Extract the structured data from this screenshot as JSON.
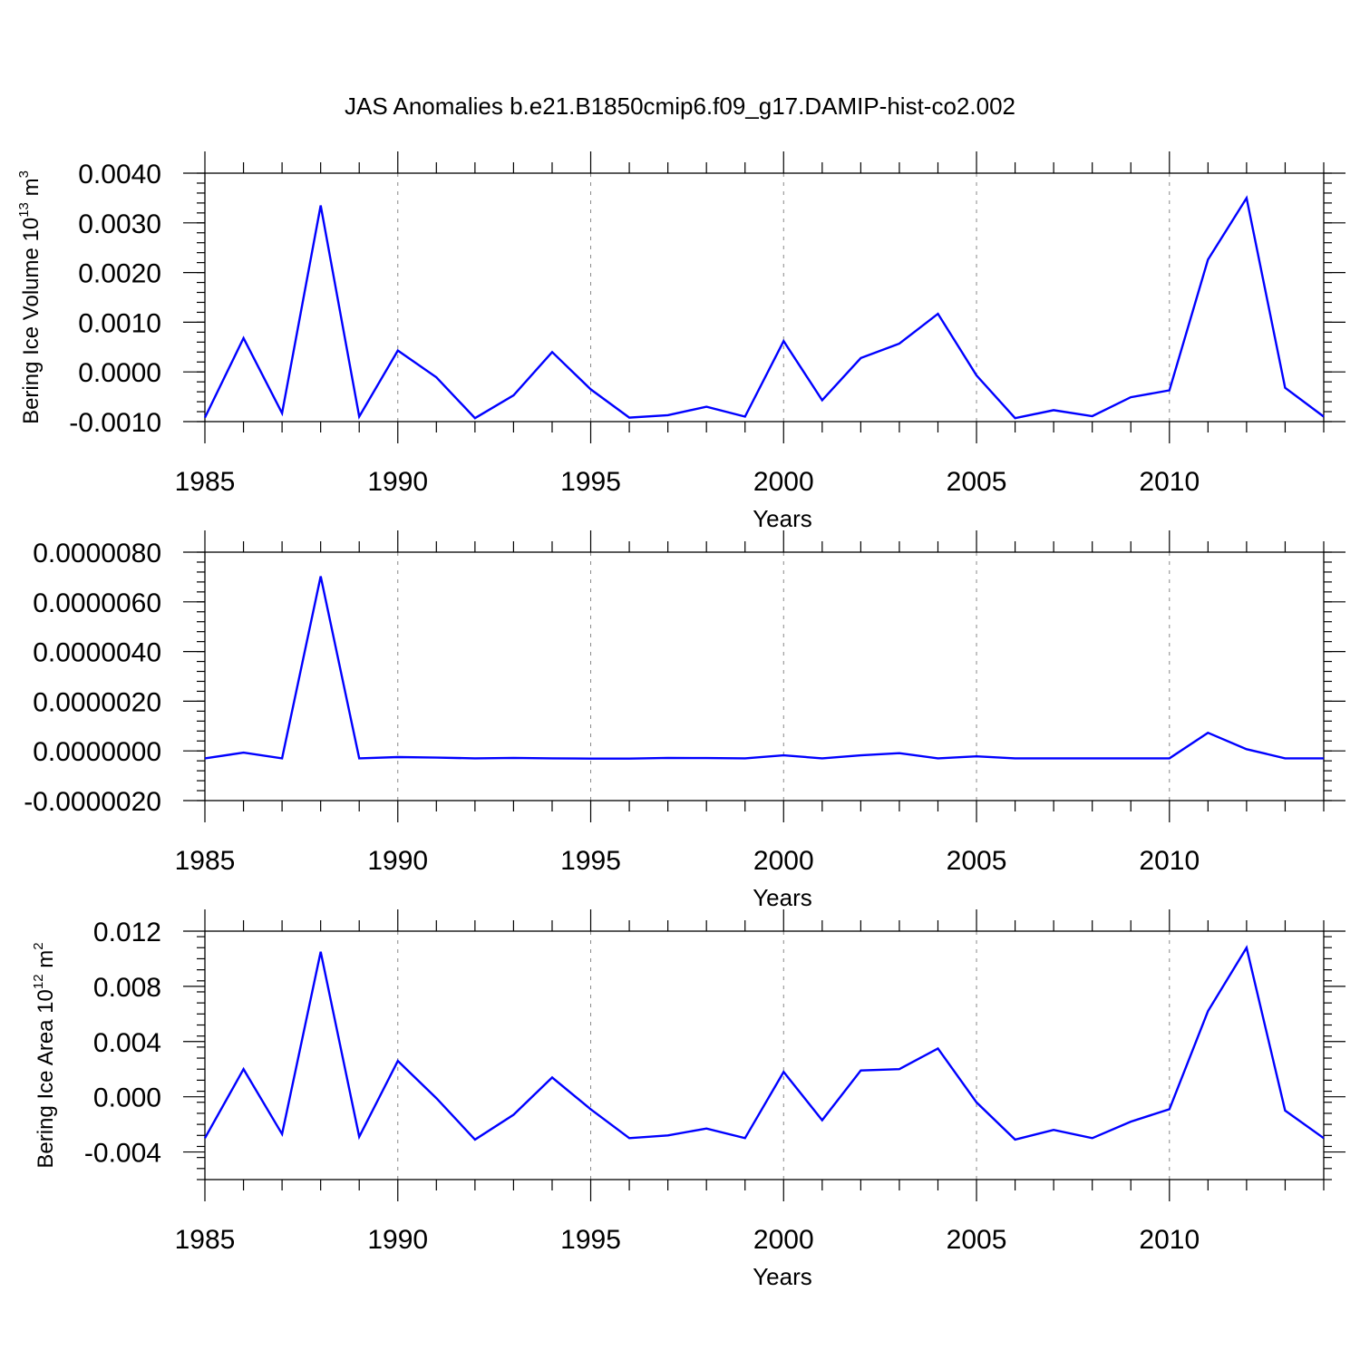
{
  "title": "JAS Anomalies b.e21.B1850cmip6.f09_g17.DAMIP-hist-co2.002",
  "colors": {
    "line": "#0000ff",
    "grid": "#888888",
    "axis": "#000000"
  },
  "chart_data": [
    {
      "type": "line",
      "xlabel": "Years",
      "ylabel": {
        "text": "Bering Ice Volume 10",
        "exp": "13",
        "unit": " m",
        "unit_exp": "3"
      },
      "xlim": [
        1985,
        2014
      ],
      "ylim": [
        -0.001,
        0.004
      ],
      "x_ticks": [
        "1985",
        "1990",
        "1995",
        "2000",
        "2005",
        "2010"
      ],
      "y_ticks": [
        {
          "value": -0.001,
          "label": "-0.0010"
        },
        {
          "value": 0.0,
          "label": "0.0000"
        },
        {
          "value": 0.001,
          "label": "0.0010"
        },
        {
          "value": 0.002,
          "label": "0.0020"
        },
        {
          "value": 0.003,
          "label": "0.0030"
        },
        {
          "value": 0.004,
          "label": "0.0040"
        }
      ],
      "grid": "vertical dashed at major x ticks",
      "x": [
        1985,
        1986,
        1987,
        1988,
        1989,
        1990,
        1991,
        1992,
        1993,
        1994,
        1995,
        1996,
        1997,
        1998,
        1999,
        2000,
        2001,
        2002,
        2003,
        2004,
        2005,
        2006,
        2007,
        2008,
        2009,
        2010,
        2011,
        2012,
        2013,
        2014
      ],
      "values": [
        -0.00092,
        0.00068,
        -0.00083,
        0.00335,
        -0.0009,
        0.00043,
        -0.00011,
        -0.00093,
        -0.00047,
        0.0004,
        -0.00035,
        -0.00092,
        -0.00087,
        -0.0007,
        -0.0009,
        0.00062,
        -0.00057,
        0.00028,
        0.00057,
        0.00117,
        -7e-05,
        -0.00093,
        -0.00077,
        -0.00089,
        -0.00051,
        -0.00037,
        0.00226,
        0.0035,
        -0.00032,
        -0.0009
      ]
    },
    {
      "type": "line",
      "xlabel": "Years",
      "ylabel": null,
      "xlim": [
        1985,
        2014
      ],
      "ylim": [
        -2e-06,
        8e-06
      ],
      "x_ticks": [
        "1985",
        "1990",
        "1995",
        "2000",
        "2005",
        "2010"
      ],
      "y_ticks": [
        {
          "value": -2e-06,
          "label": "-0.0000020"
        },
        {
          "value": 0.0,
          "label": "0.0000000"
        },
        {
          "value": 2e-06,
          "label": "0.0000020"
        },
        {
          "value": 4e-06,
          "label": "0.0000040"
        },
        {
          "value": 6e-06,
          "label": "0.0000060"
        },
        {
          "value": 8e-06,
          "label": "0.0000080"
        }
      ],
      "grid": "vertical dashed at major x ticks",
      "x": [
        1985,
        1986,
        1987,
        1988,
        1989,
        1990,
        1991,
        1992,
        1993,
        1994,
        1995,
        1996,
        1997,
        1998,
        1999,
        2000,
        2001,
        2002,
        2003,
        2004,
        2005,
        2006,
        2007,
        2008,
        2009,
        2010,
        2011,
        2012,
        2013,
        2014
      ],
      "values": [
        -3e-07,
        -7e-08,
        -3e-07,
        7.03e-06,
        -3e-07,
        -2.5e-07,
        -2.7e-07,
        -3e-07,
        -2.8e-07,
        -3e-07,
        -3.1e-07,
        -3.1e-07,
        -2.8e-07,
        -2.9e-07,
        -3e-07,
        -1.8e-07,
        -3e-07,
        -1.8e-07,
        -9e-08,
        -3e-07,
        -2.2e-07,
        -3e-07,
        -3e-07,
        -3e-07,
        -3e-07,
        -3e-07,
        7.3e-07,
        7e-08,
        -3e-07,
        -3e-07
      ]
    },
    {
      "type": "line",
      "xlabel": "Years",
      "ylabel": {
        "text": "Bering Ice Area 10",
        "exp": "12",
        "unit": " m",
        "unit_exp": "2"
      },
      "xlim": [
        1985,
        2014
      ],
      "ylim": [
        -0.006,
        0.012
      ],
      "x_ticks": [
        "1985",
        "1990",
        "1995",
        "2000",
        "2005",
        "2010"
      ],
      "y_ticks": [
        {
          "value": -0.004,
          "label": "-0.004"
        },
        {
          "value": 0.0,
          "label": "0.000"
        },
        {
          "value": 0.004,
          "label": "0.004"
        },
        {
          "value": 0.008,
          "label": "0.008"
        },
        {
          "value": 0.012,
          "label": "0.012"
        }
      ],
      "grid": "vertical dashed at major x ticks",
      "x": [
        1985,
        1986,
        1987,
        1988,
        1989,
        1990,
        1991,
        1992,
        1993,
        1994,
        1995,
        1996,
        1997,
        1998,
        1999,
        2000,
        2001,
        2002,
        2003,
        2004,
        2005,
        2006,
        2007,
        2008,
        2009,
        2010,
        2011,
        2012,
        2013,
        2014
      ],
      "values": [
        -0.003,
        0.002,
        -0.0027,
        0.0105,
        -0.0029,
        0.0026,
        -0.0001,
        -0.0031,
        -0.0013,
        0.0014,
        -0.0009,
        -0.003,
        -0.0028,
        -0.0023,
        -0.003,
        0.0018,
        -0.0017,
        0.0019,
        0.002,
        0.0035,
        -0.0004,
        -0.0031,
        -0.0024,
        -0.003,
        -0.0018,
        -0.0009,
        0.0062,
        0.0108,
        -0.001,
        -0.003
      ]
    }
  ]
}
